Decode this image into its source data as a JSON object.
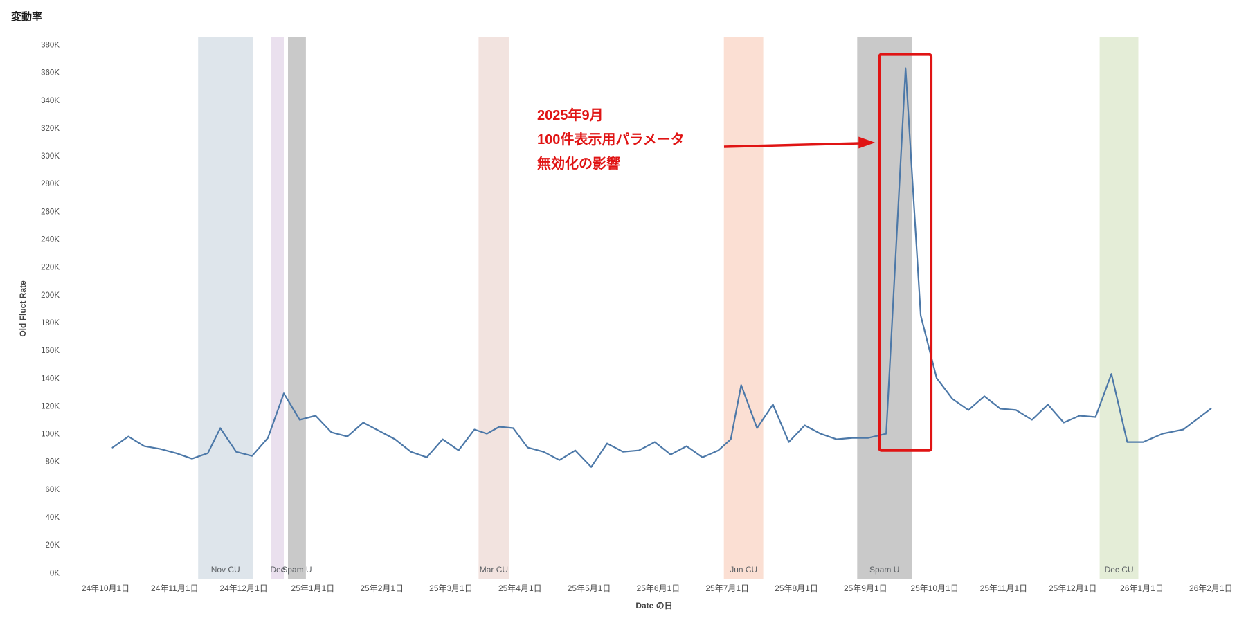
{
  "title": "変動率",
  "y_axis": {
    "title": "Old Fluct Rate",
    "ticks": [
      "0K",
      "20K",
      "40K",
      "60K",
      "80K",
      "100K",
      "120K",
      "140K",
      "160K",
      "180K",
      "200K",
      "220K",
      "240K",
      "260K",
      "280K",
      "300K",
      "320K",
      "340K",
      "360K",
      "380K"
    ]
  },
  "x_axis": {
    "title": "Date の日",
    "ticks": [
      "24年10月1日",
      "24年11月1日",
      "24年12月1日",
      "25年1月1日",
      "25年2月1日",
      "25年3月1日",
      "25年4月1日",
      "25年5月1日",
      "25年6月1日",
      "25年7月1日",
      "25年8月1日",
      "25年9月1日",
      "25年10月1日",
      "25年11月1日",
      "25年12月1日",
      "26年1月1日",
      "26年2月1日"
    ]
  },
  "chart_data": {
    "type": "line",
    "title": "変動率",
    "xlabel": "Date の日",
    "ylabel": "Old Fluct Rate",
    "x_unit": "months since 2024-10-01",
    "y_unit": "thousands (K)",
    "ylim": [
      0,
      380
    ],
    "grid": false,
    "line_color": "#4c78a8",
    "points": [
      [
        0.1,
        90
      ],
      [
        0.33,
        98
      ],
      [
        0.56,
        91
      ],
      [
        0.79,
        89
      ],
      [
        1.02,
        86
      ],
      [
        1.25,
        82
      ],
      [
        1.48,
        86
      ],
      [
        1.66,
        104
      ],
      [
        1.89,
        87
      ],
      [
        2.12,
        84
      ],
      [
        2.35,
        97
      ],
      [
        2.58,
        129
      ],
      [
        2.81,
        110
      ],
      [
        3.04,
        113
      ],
      [
        3.27,
        101
      ],
      [
        3.5,
        98
      ],
      [
        3.73,
        108
      ],
      [
        3.96,
        102
      ],
      [
        4.19,
        96
      ],
      [
        4.42,
        87
      ],
      [
        4.65,
        83
      ],
      [
        4.88,
        96
      ],
      [
        5.11,
        88
      ],
      [
        5.34,
        103
      ],
      [
        5.52,
        100
      ],
      [
        5.7,
        105
      ],
      [
        5.9,
        104
      ],
      [
        6.11,
        90
      ],
      [
        6.34,
        87
      ],
      [
        6.57,
        81
      ],
      [
        6.8,
        88
      ],
      [
        7.03,
        76
      ],
      [
        7.26,
        93
      ],
      [
        7.49,
        87
      ],
      [
        7.72,
        88
      ],
      [
        7.95,
        94
      ],
      [
        8.18,
        85
      ],
      [
        8.41,
        91
      ],
      [
        8.64,
        83
      ],
      [
        8.87,
        88
      ],
      [
        9.05,
        96
      ],
      [
        9.2,
        135
      ],
      [
        9.43,
        104
      ],
      [
        9.66,
        121
      ],
      [
        9.89,
        94
      ],
      [
        10.12,
        106
      ],
      [
        10.35,
        100
      ],
      [
        10.58,
        96
      ],
      [
        10.81,
        97
      ],
      [
        11.04,
        97
      ],
      [
        11.3,
        100
      ],
      [
        11.58,
        363
      ],
      [
        11.8,
        185
      ],
      [
        12.03,
        140
      ],
      [
        12.26,
        125
      ],
      [
        12.49,
        117
      ],
      [
        12.72,
        127
      ],
      [
        12.95,
        118
      ],
      [
        13.18,
        117
      ],
      [
        13.41,
        110
      ],
      [
        13.64,
        121
      ],
      [
        13.87,
        108
      ],
      [
        14.1,
        113
      ],
      [
        14.33,
        112
      ],
      [
        14.56,
        143
      ],
      [
        14.79,
        94
      ],
      [
        15.02,
        94
      ],
      [
        15.3,
        100
      ],
      [
        15.6,
        103
      ],
      [
        16.0,
        118
      ]
    ],
    "bands": [
      {
        "label": "Nov CU",
        "x_start": 1.34,
        "x_end": 2.13,
        "color": "#dee5eb"
      },
      {
        "label": "Dec",
        "x_start": 2.4,
        "x_end": 2.58,
        "color": "#eae0ee"
      },
      {
        "label": "Spam U",
        "x_start": 2.64,
        "x_end": 2.9,
        "color": "#c9c9c9"
      },
      {
        "label": "Mar CU",
        "x_start": 5.4,
        "x_end": 5.84,
        "color": "#f2e3df"
      },
      {
        "label": "Jun CU",
        "x_start": 8.95,
        "x_end": 9.52,
        "color": "#fbdfd3"
      },
      {
        "label": "Spam U",
        "x_start": 10.88,
        "x_end": 11.67,
        "color": "#c9c9c9"
      },
      {
        "label": "Dec CU",
        "x_start": 14.39,
        "x_end": 14.95,
        "color": "#e4edd7"
      }
    ],
    "annotation": {
      "lines": [
        "2025年9月",
        "100件表示用パラメータ",
        "無効化の影響"
      ],
      "color": "#e01414",
      "box": {
        "x_start": 11.2,
        "x_end": 11.95,
        "y_bottom": 88,
        "y_top": 373
      }
    }
  }
}
